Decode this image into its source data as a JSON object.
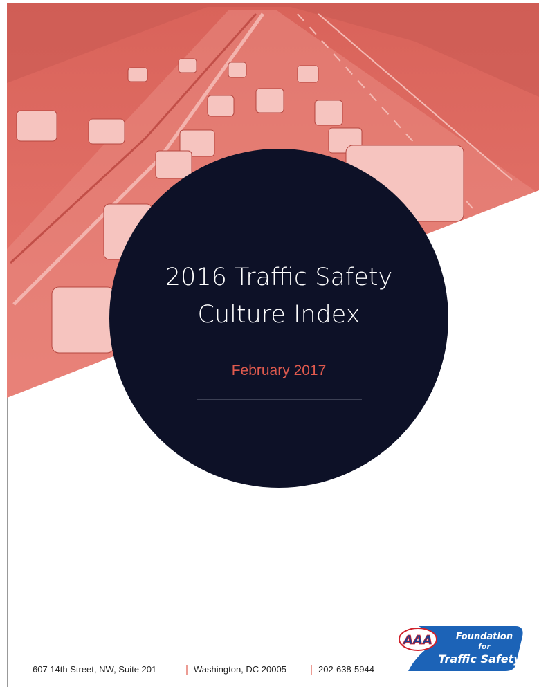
{
  "cover": {
    "title": [
      "2016 Traffic Safety",
      "Culture Index"
    ],
    "date": "February 2017"
  },
  "footer": {
    "address": [
      "607 14th Street, NW, Suite 201",
      "Washington, DC 20005",
      "202-638-5944"
    ]
  },
  "logo": {
    "aaa": "AAA",
    "text": [
      "Foundation",
      "for",
      "Traffic Safety"
    ]
  }
}
